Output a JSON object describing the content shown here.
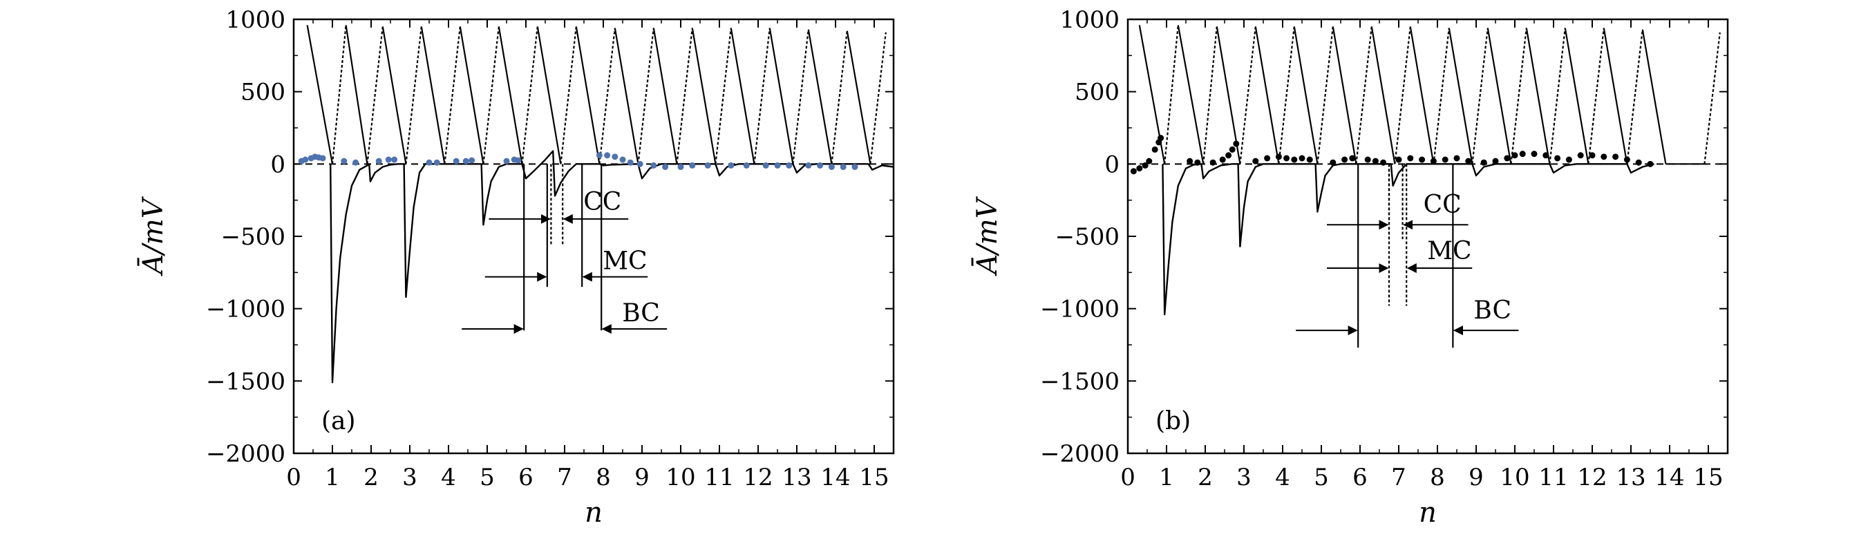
{
  "figure": {
    "panels": [
      "a",
      "b"
    ]
  },
  "chart_data": [
    {
      "type": "line",
      "panel_label": "(a)",
      "xlabel": "n",
      "ylabel": "Ā/mV",
      "xlim": [
        0,
        15.5
      ],
      "ylim": [
        -2000,
        1000
      ],
      "x_ticks": [
        0,
        1,
        2,
        3,
        4,
        5,
        6,
        7,
        8,
        9,
        10,
        11,
        12,
        13,
        14,
        15
      ],
      "x_tick_labels": [
        "0",
        "1",
        "2",
        "3",
        "4",
        "5",
        "6",
        "7",
        "8",
        "9",
        "10",
        "11",
        "12",
        "13",
        "14",
        "15"
      ],
      "y_ticks": [
        1000,
        500,
        0,
        -500,
        -1000,
        -1500,
        -2000
      ],
      "y_tick_labels": [
        "1000",
        "500",
        "0",
        "−500",
        "−1000",
        "−1500",
        "−2000"
      ],
      "zero_line": {
        "y": 0,
        "style": "dashed"
      },
      "sawtooth": {
        "peaks": [
          [
            0.35,
            960
          ],
          [
            1.35,
            960
          ],
          [
            2.3,
            950
          ],
          [
            3.3,
            950
          ],
          [
            4.3,
            950
          ],
          [
            5.3,
            950
          ],
          [
            6.3,
            950
          ],
          [
            7.3,
            950
          ],
          [
            8.3,
            940
          ],
          [
            9.3,
            940
          ],
          [
            10.3,
            940
          ],
          [
            11.3,
            940
          ],
          [
            12.3,
            940
          ],
          [
            13.3,
            930
          ],
          [
            14.3,
            920
          ],
          [
            15.3,
            910
          ]
        ],
        "troughs": [
          [
            1.0,
            0
          ],
          [
            1.9,
            0
          ],
          [
            2.9,
            0
          ],
          [
            3.9,
            0
          ],
          [
            4.9,
            0
          ],
          [
            5.9,
            0
          ],
          [
            6.9,
            0
          ],
          [
            7.9,
            0
          ],
          [
            8.9,
            0
          ],
          [
            9.9,
            0
          ],
          [
            10.9,
            0
          ],
          [
            11.9,
            0
          ],
          [
            12.9,
            0
          ],
          [
            13.9,
            0
          ],
          [
            14.9,
            0
          ]
        ]
      },
      "response": [
        [
          0.95,
          0
        ],
        [
          1.0,
          -1510
        ],
        [
          1.1,
          -1000
        ],
        [
          1.2,
          -650
        ],
        [
          1.35,
          -350
        ],
        [
          1.5,
          -150
        ],
        [
          1.7,
          -40
        ],
        [
          1.9,
          -10
        ],
        [
          1.95,
          0
        ],
        [
          1.98,
          -120
        ],
        [
          2.1,
          -60
        ],
        [
          2.3,
          -20
        ],
        [
          2.5,
          -5
        ],
        [
          2.7,
          0
        ],
        [
          2.85,
          0
        ],
        [
          2.9,
          -920
        ],
        [
          3.0,
          -600
        ],
        [
          3.1,
          -300
        ],
        [
          3.25,
          -60
        ],
        [
          3.4,
          0
        ],
        [
          4.85,
          0
        ],
        [
          4.9,
          -420
        ],
        [
          5.0,
          -250
        ],
        [
          5.1,
          -120
        ],
        [
          5.3,
          -20
        ],
        [
          5.5,
          0
        ],
        [
          5.9,
          0
        ],
        [
          6.0,
          -100
        ],
        [
          6.2,
          -50
        ],
        [
          6.5,
          30
        ],
        [
          6.7,
          90
        ],
        [
          6.75,
          -220
        ],
        [
          6.9,
          -130
        ],
        [
          7.1,
          -50
        ],
        [
          7.3,
          0
        ],
        [
          7.9,
          0
        ],
        [
          8.0,
          -10
        ],
        [
          8.2,
          -5
        ],
        [
          8.9,
          0
        ],
        [
          9.0,
          -100
        ],
        [
          9.2,
          -30
        ],
        [
          9.5,
          0
        ],
        [
          10.9,
          0
        ],
        [
          11.0,
          -80
        ],
        [
          11.2,
          -20
        ],
        [
          11.5,
          0
        ],
        [
          12.9,
          0
        ],
        [
          13.0,
          -60
        ],
        [
          13.2,
          -10
        ],
        [
          13.5,
          0
        ],
        [
          14.85,
          0
        ],
        [
          14.95,
          -40
        ],
        [
          15.2,
          -10
        ],
        [
          15.5,
          -20
        ]
      ],
      "scatter": {
        "color": "#4f72b0",
        "points": [
          [
            0.2,
            20
          ],
          [
            0.3,
            30
          ],
          [
            0.45,
            40
          ],
          [
            0.55,
            50
          ],
          [
            0.65,
            45
          ],
          [
            0.75,
            40
          ],
          [
            1.3,
            20
          ],
          [
            1.6,
            10
          ],
          [
            2.2,
            20
          ],
          [
            2.45,
            30
          ],
          [
            2.6,
            30
          ],
          [
            3.5,
            10
          ],
          [
            3.7,
            10
          ],
          [
            4.2,
            20
          ],
          [
            4.45,
            20
          ],
          [
            4.6,
            25
          ],
          [
            5.5,
            20
          ],
          [
            5.7,
            30
          ],
          [
            5.8,
            25
          ],
          [
            7.9,
            60
          ],
          [
            8.1,
            60
          ],
          [
            8.3,
            50
          ],
          [
            8.5,
            30
          ],
          [
            8.7,
            10
          ],
          [
            8.95,
            0
          ],
          [
            9.3,
            -10
          ],
          [
            9.6,
            -20
          ],
          [
            10.0,
            -20
          ],
          [
            10.3,
            -10
          ],
          [
            10.7,
            -10
          ],
          [
            11.3,
            -10
          ],
          [
            11.7,
            -10
          ],
          [
            12.2,
            -10
          ],
          [
            12.5,
            -10
          ],
          [
            12.8,
            -10
          ],
          [
            13.3,
            -10
          ],
          [
            13.6,
            -10
          ],
          [
            13.9,
            -20
          ],
          [
            14.2,
            -20
          ],
          [
            14.5,
            -20
          ]
        ]
      },
      "annotations": [
        {
          "label": "CC",
          "markers": [
            6.65,
            6.95
          ],
          "marker_style": "dotted",
          "marker_bottom": -560,
          "arrow_y": -380,
          "label_y": -260
        },
        {
          "label": "MC",
          "markers": [
            6.55,
            7.45
          ],
          "marker_style": "solid",
          "marker_bottom": -850,
          "arrow_y": -780,
          "label_y": -670
        },
        {
          "label": "BC",
          "markers": [
            5.95,
            7.95
          ],
          "marker_style": "solid",
          "marker_bottom": -1150,
          "arrow_y": -1140,
          "label_y": -1030
        }
      ]
    },
    {
      "type": "line",
      "panel_label": "(b)",
      "xlabel": "n",
      "ylabel": "Ā/mV",
      "xlim": [
        0,
        15.5
      ],
      "ylim": [
        -2000,
        1000
      ],
      "x_ticks": [
        0,
        1,
        2,
        3,
        4,
        5,
        6,
        7,
        8,
        9,
        10,
        11,
        12,
        13,
        14,
        15
      ],
      "x_tick_labels": [
        "0",
        "1",
        "2",
        "3",
        "4",
        "5",
        "6",
        "7",
        "8",
        "9",
        "10",
        "11",
        "12",
        "13",
        "14",
        "15"
      ],
      "y_ticks": [
        1000,
        500,
        0,
        -500,
        -1000,
        -1500,
        -2000
      ],
      "y_tick_labels": [
        "1000",
        "500",
        "0",
        "−500",
        "−1000",
        "−1500",
        "−2000"
      ],
      "zero_line": {
        "y": 0,
        "style": "dashed"
      },
      "sawtooth": {
        "peaks": [
          [
            0.3,
            960
          ],
          [
            1.3,
            960
          ],
          [
            2.3,
            950
          ],
          [
            3.3,
            950
          ],
          [
            4.3,
            950
          ],
          [
            5.3,
            950
          ],
          [
            6.3,
            950
          ],
          [
            7.3,
            950
          ],
          [
            8.3,
            940
          ],
          [
            9.3,
            940
          ],
          [
            10.3,
            940
          ],
          [
            11.3,
            940
          ],
          [
            12.3,
            940
          ],
          [
            13.3,
            930
          ],
          [
            15.3,
            910
          ]
        ],
        "troughs": [
          [
            0.95,
            0
          ],
          [
            1.95,
            0
          ],
          [
            2.9,
            0
          ],
          [
            3.9,
            0
          ],
          [
            4.9,
            0
          ],
          [
            5.9,
            0
          ],
          [
            6.9,
            0
          ],
          [
            7.9,
            0
          ],
          [
            8.9,
            0
          ],
          [
            9.9,
            0
          ],
          [
            10.9,
            0
          ],
          [
            11.9,
            0
          ],
          [
            12.9,
            0
          ],
          [
            13.9,
            0
          ],
          [
            14.9,
            0
          ]
        ]
      },
      "response": [
        [
          0.9,
          0
        ],
        [
          0.95,
          -1040
        ],
        [
          1.05,
          -700
        ],
        [
          1.15,
          -400
        ],
        [
          1.3,
          -150
        ],
        [
          1.5,
          -30
        ],
        [
          1.7,
          -5
        ],
        [
          1.9,
          0
        ],
        [
          1.95,
          -100
        ],
        [
          2.1,
          -50
        ],
        [
          2.4,
          -10
        ],
        [
          2.7,
          0
        ],
        [
          2.85,
          0
        ],
        [
          2.9,
          -570
        ],
        [
          3.0,
          -300
        ],
        [
          3.1,
          -120
        ],
        [
          3.3,
          -20
        ],
        [
          3.5,
          0
        ],
        [
          4.85,
          0
        ],
        [
          4.9,
          -330
        ],
        [
          5.0,
          -200
        ],
        [
          5.1,
          -80
        ],
        [
          5.3,
          -10
        ],
        [
          5.5,
          0
        ],
        [
          6.8,
          0
        ],
        [
          6.85,
          -150
        ],
        [
          7.0,
          -60
        ],
        [
          7.2,
          0
        ],
        [
          8.9,
          0
        ],
        [
          9.0,
          -80
        ],
        [
          9.2,
          -20
        ],
        [
          9.5,
          0
        ],
        [
          10.9,
          0
        ],
        [
          11.0,
          -60
        ],
        [
          11.3,
          -10
        ],
        [
          11.6,
          0
        ],
        [
          12.9,
          0
        ],
        [
          13.0,
          -60
        ],
        [
          13.3,
          -20
        ],
        [
          13.6,
          0
        ]
      ],
      "scatter": {
        "color": "#000000",
        "points": [
          [
            0.15,
            -50
          ],
          [
            0.3,
            -30
          ],
          [
            0.45,
            -10
          ],
          [
            0.55,
            20
          ],
          [
            0.7,
            100
          ],
          [
            0.8,
            150
          ],
          [
            0.85,
            180
          ],
          [
            1.6,
            20
          ],
          [
            1.8,
            10
          ],
          [
            2.2,
            10
          ],
          [
            2.45,
            30
          ],
          [
            2.6,
            60
          ],
          [
            2.7,
            100
          ],
          [
            2.8,
            140
          ],
          [
            3.3,
            20
          ],
          [
            3.6,
            40
          ],
          [
            3.9,
            50
          ],
          [
            4.1,
            40
          ],
          [
            4.3,
            30
          ],
          [
            4.5,
            40
          ],
          [
            4.7,
            30
          ],
          [
            5.3,
            10
          ],
          [
            5.6,
            30
          ],
          [
            5.8,
            40
          ],
          [
            6.2,
            30
          ],
          [
            6.4,
            20
          ],
          [
            6.6,
            10
          ],
          [
            7.0,
            30
          ],
          [
            7.3,
            40
          ],
          [
            7.6,
            30
          ],
          [
            7.9,
            20
          ],
          [
            8.2,
            30
          ],
          [
            8.5,
            40
          ],
          [
            8.8,
            20
          ],
          [
            9.2,
            10
          ],
          [
            9.5,
            20
          ],
          [
            9.8,
            40
          ],
          [
            10.0,
            60
          ],
          [
            10.2,
            70
          ],
          [
            10.5,
            70
          ],
          [
            10.8,
            60
          ],
          [
            11.1,
            40
          ],
          [
            11.4,
            30
          ],
          [
            11.7,
            60
          ],
          [
            12.0,
            60
          ],
          [
            12.3,
            50
          ],
          [
            12.6,
            50
          ],
          [
            12.9,
            30
          ],
          [
            13.2,
            10
          ],
          [
            13.5,
            0
          ]
        ]
      },
      "annotations": [
        {
          "label": "CC",
          "markers": [
            6.75,
            7.1
          ],
          "marker_style": "dotted",
          "marker_bottom": -520,
          "arrow_y": -420,
          "label_y": -280
        },
        {
          "label": "MC",
          "markers": [
            6.75,
            7.2
          ],
          "marker_style": "dotted",
          "marker_bottom": -980,
          "arrow_y": -720,
          "label_y": -600
        },
        {
          "label": "BC",
          "markers": [
            5.95,
            8.4
          ],
          "marker_style": "solid",
          "marker_bottom": -1270,
          "arrow_y": -1150,
          "label_y": -1010
        }
      ]
    }
  ]
}
